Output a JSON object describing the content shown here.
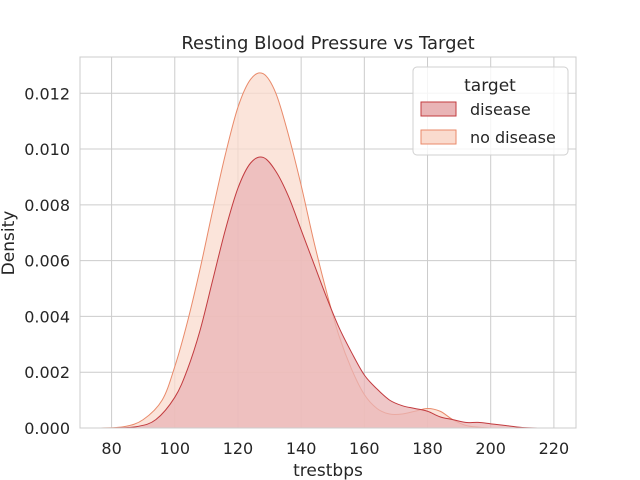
{
  "chart_data": {
    "type": "area",
    "title": "Resting Blood Pressure vs Target",
    "xlabel": "trestbps",
    "ylabel": "Density",
    "xlim": [
      70,
      227
    ],
    "ylim": [
      0,
      0.0133
    ],
    "xticks": [
      80,
      100,
      120,
      140,
      160,
      180,
      200,
      220
    ],
    "yticks": [
      0.0,
      0.002,
      0.004,
      0.006,
      0.008,
      0.01,
      0.012
    ],
    "ytick_labels": [
      "0.000",
      "0.002",
      "0.004",
      "0.006",
      "0.008",
      "0.010",
      "0.012"
    ],
    "grid": true,
    "legend": {
      "title": "target",
      "position": "top-right"
    },
    "series": [
      {
        "name": "no disease",
        "fill": "#fadbce",
        "stroke": "#e98a6a",
        "x": [
          76,
          84,
          90,
          96,
          100,
          104,
          108,
          112,
          116,
          120,
          124,
          128,
          132,
          136,
          140,
          144,
          148,
          152,
          156,
          160,
          164,
          168,
          172,
          176,
          180,
          184,
          188,
          192,
          196,
          200
        ],
        "y": [
          0.0,
          5e-05,
          0.0003,
          0.001,
          0.0022,
          0.0038,
          0.0057,
          0.0078,
          0.0098,
          0.0115,
          0.0125,
          0.0127,
          0.012,
          0.0105,
          0.0087,
          0.0067,
          0.0049,
          0.0033,
          0.0021,
          0.0012,
          0.0007,
          0.0005,
          0.0005,
          0.0006,
          0.0007,
          0.0006,
          0.0003,
          0.0001,
          3e-05,
          0.0
        ]
      },
      {
        "name": "disease",
        "fill": "#e9b4b6",
        "stroke": "#c23b3f",
        "x": [
          80,
          88,
          94,
          100,
          104,
          108,
          112,
          116,
          120,
          124,
          128,
          132,
          136,
          140,
          144,
          148,
          152,
          156,
          160,
          164,
          168,
          172,
          176,
          180,
          184,
          188,
          192,
          196,
          200,
          204,
          210,
          216
        ],
        "y": [
          0.0,
          5e-05,
          0.0003,
          0.0011,
          0.0021,
          0.0035,
          0.0053,
          0.0071,
          0.0086,
          0.0095,
          0.0097,
          0.0092,
          0.0083,
          0.0071,
          0.0059,
          0.0047,
          0.0036,
          0.0027,
          0.0019,
          0.0014,
          0.001,
          0.0008,
          0.0007,
          0.0006,
          0.0004,
          0.0003,
          0.0002,
          0.0002,
          0.00015,
          0.0001,
          2e-05,
          0.0
        ]
      }
    ]
  }
}
